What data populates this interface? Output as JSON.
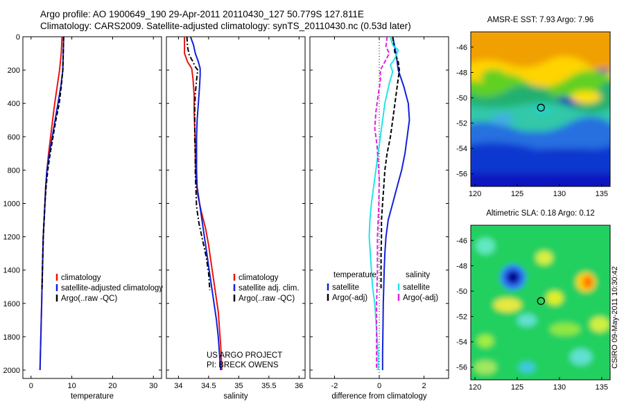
{
  "header": {
    "line1": "Argo profile: AO 1900649_190 29-Apr-2011 20110430_127 50.779S 127.811E",
    "line2": "Climatology: CARS2009. Satellite-adjusted climatology: synTS_20110430.nc (0.53d later)"
  },
  "colors": {
    "red": "#e8140c",
    "blue": "#1020d8",
    "black": "#000000",
    "cyan": "#20e4e8",
    "magenta": "#e020e0"
  },
  "credit": {
    "line1": "US ARGO PROJECT",
    "line2": "PI: BRECK OWENS"
  },
  "side_label": "CSIRO 09-May-2011 10:30:42",
  "chart_data": [
    {
      "type": "line",
      "xlabel": "temperature",
      "ylabel": "",
      "xlim": [
        -2,
        32
      ],
      "ylim": [
        2050,
        0
      ],
      "xticks": [
        0,
        10,
        20,
        30
      ],
      "yticks": [
        0,
        200,
        400,
        600,
        800,
        1000,
        1200,
        1400,
        1600,
        1800,
        2000
      ],
      "legend_position": "lower-center",
      "series": [
        {
          "name": "climatology",
          "color": "red",
          "dash": "solid",
          "points": [
            [
              7.6,
              0
            ],
            [
              7.4,
              100
            ],
            [
              7.0,
              200
            ],
            [
              6.4,
              300
            ],
            [
              5.8,
              400
            ],
            [
              5.3,
              500
            ],
            [
              4.8,
              600
            ],
            [
              4.3,
              700
            ],
            [
              3.9,
              800
            ],
            [
              3.6,
              900
            ],
            [
              3.4,
              1000
            ],
            [
              3.2,
              1100
            ],
            [
              3.0,
              1200
            ],
            [
              2.9,
              1300
            ],
            [
              2.8,
              1400
            ],
            [
              2.7,
              1500
            ],
            [
              2.6,
              1600
            ],
            [
              2.5,
              1700
            ],
            [
              2.4,
              1800
            ],
            [
              2.3,
              1900
            ],
            [
              2.2,
              2000
            ]
          ]
        },
        {
          "name": "satellite-adjusted climatology",
          "color": "blue",
          "dash": "solid",
          "points": [
            [
              8.0,
              0
            ],
            [
              7.9,
              100
            ],
            [
              7.8,
              200
            ],
            [
              7.3,
              300
            ],
            [
              6.6,
              400
            ],
            [
              5.9,
              500
            ],
            [
              5.2,
              600
            ],
            [
              4.5,
              700
            ],
            [
              3.9,
              800
            ],
            [
              3.6,
              900
            ],
            [
              3.4,
              1000
            ],
            [
              3.2,
              1100
            ],
            [
              3.0,
              1200
            ],
            [
              2.9,
              1300
            ],
            [
              2.8,
              1400
            ],
            [
              2.7,
              1500
            ],
            [
              2.6,
              1600
            ],
            [
              2.5,
              1700
            ],
            [
              2.4,
              1800
            ],
            [
              2.3,
              1900
            ],
            [
              2.2,
              2000
            ]
          ]
        },
        {
          "name": "Argo(..raw -QC)",
          "color": "black",
          "dash": "dashed",
          "points": [
            [
              8.0,
              0
            ],
            [
              7.9,
              100
            ],
            [
              7.8,
              200
            ],
            [
              7.4,
              300
            ],
            [
              6.9,
              400
            ],
            [
              6.1,
              500
            ],
            [
              5.4,
              600
            ],
            [
              4.7,
              700
            ],
            [
              4.1,
              800
            ],
            [
              3.7,
              900
            ],
            [
              3.4,
              1000
            ],
            [
              3.2,
              1100
            ],
            [
              3.0,
              1200
            ],
            [
              2.9,
              1300
            ],
            [
              2.8,
              1400
            ],
            [
              2.7,
              1520
            ]
          ]
        }
      ]
    },
    {
      "type": "line",
      "xlabel": "salinity",
      "ylabel": "",
      "xlim": [
        33.8,
        36.1
      ],
      "ylim": [
        2050,
        0
      ],
      "xticks": [
        34,
        34.5,
        35,
        35.5,
        36
      ],
      "yticks": [
        0,
        200,
        400,
        600,
        800,
        1000,
        1200,
        1400,
        1600,
        1800,
        2000
      ],
      "legend_position": "lower-center",
      "series": [
        {
          "name": "climatology",
          "color": "red",
          "dash": "solid",
          "points": [
            [
              34.1,
              0
            ],
            [
              34.1,
              100
            ],
            [
              34.15,
              150
            ],
            [
              34.22,
              190
            ],
            [
              34.24,
              250
            ],
            [
              34.26,
              350
            ],
            [
              34.26,
              450
            ],
            [
              34.27,
              550
            ],
            [
              34.28,
              650
            ],
            [
              34.28,
              750
            ],
            [
              34.29,
              850
            ],
            [
              34.32,
              950
            ],
            [
              34.38,
              1050
            ],
            [
              34.45,
              1150
            ],
            [
              34.5,
              1250
            ],
            [
              34.54,
              1350
            ],
            [
              34.58,
              1450
            ],
            [
              34.62,
              1550
            ],
            [
              34.66,
              1650
            ],
            [
              34.68,
              1750
            ],
            [
              34.7,
              1850
            ],
            [
              34.72,
              2000
            ]
          ]
        },
        {
          "name": "satellite adj. clim.",
          "color": "blue",
          "dash": "solid",
          "points": [
            [
              34.2,
              0
            ],
            [
              34.25,
              50
            ],
            [
              34.28,
              100
            ],
            [
              34.33,
              150
            ],
            [
              34.36,
              190
            ],
            [
              34.36,
              230
            ],
            [
              34.35,
              300
            ],
            [
              34.33,
              400
            ],
            [
              34.31,
              500
            ],
            [
              34.3,
              600
            ],
            [
              34.3,
              700
            ],
            [
              34.3,
              800
            ],
            [
              34.31,
              900
            ],
            [
              34.35,
              1000
            ],
            [
              34.39,
              1100
            ],
            [
              34.43,
              1200
            ],
            [
              34.47,
              1300
            ],
            [
              34.51,
              1400
            ],
            [
              34.55,
              1500
            ],
            [
              34.59,
              1600
            ],
            [
              34.63,
              1700
            ],
            [
              34.66,
              1800
            ],
            [
              34.68,
              1900
            ],
            [
              34.7,
              2000
            ]
          ]
        },
        {
          "name": "Argo(..raw -QC)",
          "color": "black",
          "dash": "dashdot",
          "points": [
            [
              34.14,
              0
            ],
            [
              34.15,
              60
            ],
            [
              34.18,
              110
            ],
            [
              34.24,
              150
            ],
            [
              34.28,
              180
            ],
            [
              34.32,
              200
            ],
            [
              34.3,
              260
            ],
            [
              34.28,
              340
            ],
            [
              34.27,
              420
            ],
            [
              34.27,
              520
            ],
            [
              34.27,
              620
            ],
            [
              34.28,
              720
            ],
            [
              34.28,
              820
            ],
            [
              34.29,
              920
            ],
            [
              34.3,
              1020
            ],
            [
              34.34,
              1120
            ],
            [
              34.4,
              1220
            ],
            [
              34.46,
              1320
            ],
            [
              34.5,
              1420
            ],
            [
              34.52,
              1520
            ]
          ]
        }
      ]
    },
    {
      "type": "line",
      "xlabel": "difference from climatology",
      "ylabel": "",
      "xlim": [
        -3.1,
        3.1
      ],
      "ylim": [
        2050,
        0
      ],
      "xticks": [
        -2,
        0,
        2
      ],
      "yticks": [
        0,
        200,
        400,
        600,
        800,
        1000,
        1200,
        1400,
        1600,
        1800,
        2000
      ],
      "legend_position": "lower-center",
      "legend_headers": [
        "temperature",
        "salinity"
      ],
      "series": [
        {
          "name": "satellite",
          "group": "temperature",
          "color": "blue",
          "dash": "solid",
          "points": [
            [
              0.6,
              0
            ],
            [
              0.75,
              100
            ],
            [
              0.85,
              200
            ],
            [
              1.1,
              300
            ],
            [
              1.3,
              400
            ],
            [
              1.35,
              500
            ],
            [
              1.25,
              600
            ],
            [
              1.15,
              700
            ],
            [
              1.0,
              800
            ],
            [
              0.8,
              900
            ],
            [
              0.6,
              1000
            ],
            [
              0.4,
              1100
            ],
            [
              0.3,
              1200
            ],
            [
              0.25,
              1300
            ],
            [
              0.22,
              1400
            ],
            [
              0.2,
              1500
            ],
            [
              0.18,
              1600
            ],
            [
              0.17,
              1700
            ],
            [
              0.16,
              1800
            ],
            [
              0.15,
              1900
            ],
            [
              0.15,
              2000
            ]
          ]
        },
        {
          "name": "Argo(-adj)",
          "group": "temperature",
          "color": "black",
          "dash": "dashed",
          "points": [
            [
              0.6,
              0
            ],
            [
              0.7,
              100
            ],
            [
              0.85,
              150
            ],
            [
              0.9,
              200
            ],
            [
              0.8,
              300
            ],
            [
              0.7,
              400
            ],
            [
              0.6,
              500
            ],
            [
              0.5,
              600
            ],
            [
              0.35,
              700
            ],
            [
              0.25,
              800
            ],
            [
              0.2,
              900
            ],
            [
              0.15,
              1000
            ],
            [
              0.1,
              1100
            ],
            [
              0.1,
              1200
            ],
            [
              0.08,
              1300
            ],
            [
              0.08,
              1400
            ],
            [
              0.08,
              1520
            ]
          ]
        },
        {
          "name": "satellite",
          "group": "salinity",
          "color": "cyan",
          "dash": "solid",
          "points": [
            [
              0.5,
              0
            ],
            [
              0.6,
              50
            ],
            [
              0.85,
              80
            ],
            [
              0.7,
              130
            ],
            [
              0.5,
              170
            ],
            [
              0.6,
              210
            ],
            [
              0.45,
              280
            ],
            [
              0.25,
              400
            ],
            [
              0.1,
              550
            ],
            [
              -0.05,
              700
            ],
            [
              -0.2,
              850
            ],
            [
              -0.35,
              1000
            ],
            [
              -0.42,
              1100
            ],
            [
              -0.45,
              1200
            ],
            [
              -0.4,
              1300
            ],
            [
              -0.35,
              1400
            ],
            [
              -0.3,
              1500
            ],
            [
              -0.2,
              1600
            ],
            [
              -0.15,
              1700
            ],
            [
              -0.1,
              1800
            ],
            [
              -0.05,
              1900
            ],
            [
              -0.05,
              2000
            ]
          ]
        },
        {
          "name": "Argo(-adj)",
          "group": "salinity",
          "color": "magenta",
          "dash": "dashed",
          "points": [
            [
              0.35,
              0
            ],
            [
              0.3,
              60
            ],
            [
              0.45,
              100
            ],
            [
              0.25,
              150
            ],
            [
              0.05,
              200
            ],
            [
              0.05,
              260
            ],
            [
              -0.05,
              350
            ],
            [
              -0.15,
              450
            ],
            [
              -0.2,
              550
            ],
            [
              -0.1,
              650
            ],
            [
              -0.05,
              750
            ],
            [
              0.0,
              850
            ],
            [
              -0.02,
              1000
            ],
            [
              -0.05,
              1100
            ],
            [
              -0.08,
              1200
            ],
            [
              -0.08,
              1300
            ],
            [
              -0.08,
              1400
            ],
            [
              -0.1,
              1500
            ],
            [
              -0.12,
              1600
            ],
            [
              -0.12,
              1700
            ],
            [
              -0.12,
              1800
            ],
            [
              -0.12,
              1900
            ],
            [
              -0.12,
              2000
            ]
          ]
        }
      ]
    },
    {
      "type": "heatmap",
      "title": "AMSR-E SST: 7.93 Argo: 7.96",
      "xlim": [
        119.5,
        136
      ],
      "ylim": [
        -57,
        -44.8
      ],
      "xticks": [
        120,
        125,
        130,
        135
      ],
      "yticks": [
        -46,
        -48,
        -50,
        -52,
        -54,
        -56
      ],
      "marker": [
        127.811,
        -50.779
      ]
    },
    {
      "type": "heatmap",
      "title": "Altimetric SLA: 0.18 Argo: 0.12",
      "xlim": [
        119.5,
        136
      ],
      "ylim": [
        -57,
        -44.8
      ],
      "xticks": [
        120,
        125,
        130,
        135
      ],
      "yticks": [
        -46,
        -48,
        -50,
        -52,
        -54,
        -56
      ],
      "marker": [
        127.811,
        -50.779
      ]
    }
  ]
}
